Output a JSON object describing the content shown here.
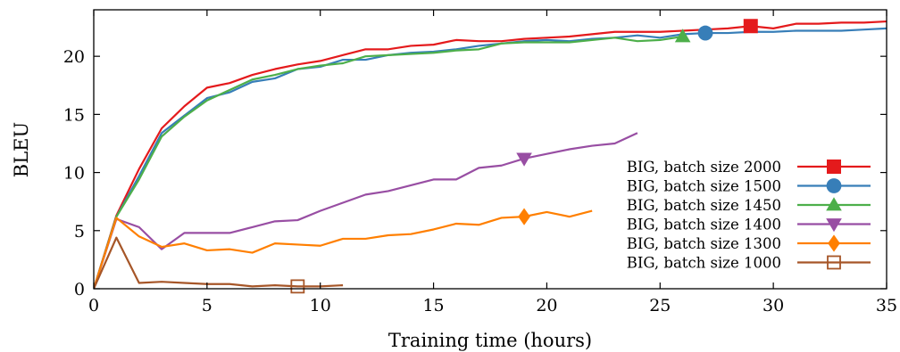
{
  "chart_data": {
    "type": "line",
    "title": "",
    "xlabel": "Training time (hours)",
    "ylabel": "BLEU",
    "xlim": [
      0,
      35
    ],
    "ylim": [
      0,
      24
    ],
    "xticks": [
      0,
      5,
      10,
      15,
      20,
      25,
      30,
      35
    ],
    "yticks": [
      0,
      5,
      10,
      15,
      20
    ],
    "grid": false,
    "legend_position": "right",
    "series": [
      {
        "name": "BIG, batch size 2000",
        "color": "#e41a1c",
        "marker": "square-filled",
        "marker_at": [
          29,
          22.6
        ],
        "x": [
          0,
          1,
          2,
          3,
          4,
          5,
          6,
          7,
          8,
          9,
          10,
          11,
          12,
          13,
          14,
          15,
          16,
          17,
          18,
          19,
          20,
          21,
          22,
          23,
          24,
          25,
          26,
          27,
          28,
          29,
          30,
          31,
          32,
          33,
          34,
          35
        ],
        "y": [
          0,
          6.3,
          10.3,
          13.8,
          15.7,
          17.3,
          17.7,
          18.4,
          18.9,
          19.3,
          19.6,
          20.1,
          20.6,
          20.6,
          20.9,
          21.0,
          21.4,
          21.3,
          21.3,
          21.5,
          21.6,
          21.7,
          21.9,
          22.1,
          22.1,
          22.1,
          22.2,
          22.3,
          22.4,
          22.6,
          22.4,
          22.8,
          22.8,
          22.9,
          22.9,
          23.0
        ]
      },
      {
        "name": "BIG, batch size 1500",
        "color": "#377eb8",
        "marker": "circle-filled",
        "marker_at": [
          27,
          22.0
        ],
        "x": [
          0,
          1,
          2,
          3,
          4,
          5,
          6,
          7,
          8,
          9,
          10,
          11,
          12,
          13,
          14,
          15,
          16,
          17,
          18,
          19,
          20,
          21,
          22,
          23,
          24,
          25,
          26,
          27,
          28,
          29,
          30,
          31,
          32,
          33,
          34,
          35
        ],
        "y": [
          0,
          6.2,
          9.7,
          13.4,
          14.9,
          16.4,
          16.9,
          17.8,
          18.1,
          18.9,
          19.1,
          19.7,
          19.7,
          20.1,
          20.3,
          20.4,
          20.6,
          20.9,
          21.1,
          21.3,
          21.4,
          21.3,
          21.5,
          21.6,
          21.8,
          21.6,
          21.9,
          22.0,
          22.0,
          22.1,
          22.1,
          22.2,
          22.2,
          22.2,
          22.3,
          22.4
        ]
      },
      {
        "name": "BIG, batch size 1450",
        "color": "#4daf4a",
        "marker": "triangle-up-filled",
        "marker_at": [
          26,
          21.7
        ],
        "x": [
          0,
          1,
          2,
          3,
          4,
          5,
          6,
          7,
          8,
          9,
          10,
          11,
          12,
          13,
          14,
          15,
          16,
          17,
          18,
          19,
          20,
          21,
          22,
          23,
          24,
          25,
          26
        ],
        "y": [
          0,
          6.2,
          9.4,
          13.1,
          14.8,
          16.2,
          17.1,
          18.0,
          18.4,
          18.9,
          19.2,
          19.4,
          20.0,
          20.1,
          20.2,
          20.3,
          20.5,
          20.6,
          21.1,
          21.2,
          21.2,
          21.2,
          21.4,
          21.6,
          21.3,
          21.4,
          21.7
        ]
      },
      {
        "name": "BIG, batch size 1400",
        "color": "#984ea3",
        "marker": "triangle-down-filled",
        "marker_at": [
          19,
          11.2
        ],
        "x": [
          0,
          1,
          2,
          3,
          4,
          5,
          6,
          7,
          8,
          9,
          10,
          11,
          12,
          13,
          14,
          15,
          16,
          17,
          18,
          19,
          20,
          21,
          22,
          23,
          24
        ],
        "y": [
          0,
          6.0,
          5.3,
          3.4,
          4.8,
          4.8,
          4.8,
          5.3,
          5.8,
          5.9,
          6.7,
          7.4,
          8.1,
          8.4,
          8.9,
          9.4,
          9.4,
          10.4,
          10.6,
          11.2,
          11.6,
          12.0,
          12.3,
          12.5,
          13.4
        ]
      },
      {
        "name": "BIG, batch size 1300",
        "color": "#ff7f00",
        "marker": "diamond-filled",
        "marker_at": [
          19,
          6.2
        ],
        "x": [
          0,
          1,
          2,
          3,
          4,
          5,
          6,
          7,
          8,
          9,
          10,
          11,
          12,
          13,
          14,
          15,
          16,
          17,
          18,
          19,
          20,
          21,
          22
        ],
        "y": [
          0,
          6.1,
          4.5,
          3.6,
          3.9,
          3.3,
          3.4,
          3.1,
          3.9,
          3.8,
          3.7,
          4.3,
          4.3,
          4.6,
          4.7,
          5.1,
          5.6,
          5.5,
          6.1,
          6.2,
          6.6,
          6.2,
          6.7
        ]
      },
      {
        "name": "BIG, batch size 1000",
        "color": "#a65628",
        "marker": "square-open",
        "marker_at": [
          9,
          0.2
        ],
        "x": [
          0,
          1,
          2,
          3,
          4,
          5,
          6,
          7,
          8,
          9,
          10,
          11
        ],
        "y": [
          0,
          4.4,
          0.5,
          0.6,
          0.5,
          0.4,
          0.4,
          0.2,
          0.3,
          0.2,
          0.2,
          0.3
        ]
      }
    ]
  }
}
